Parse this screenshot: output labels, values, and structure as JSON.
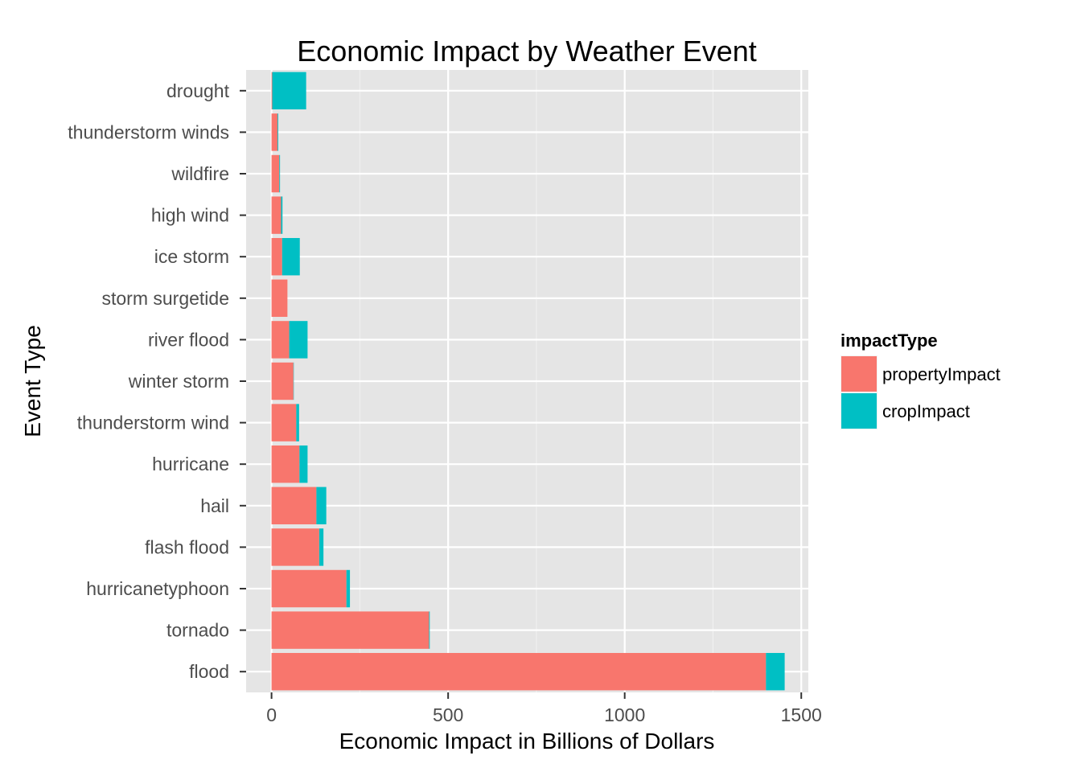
{
  "chart_data": {
    "type": "bar",
    "orientation": "horizontal",
    "stacked": true,
    "title": "Economic Impact by Weather Event",
    "xlabel": "Economic Impact in Billions of Dollars",
    "ylabel": "Event Type",
    "xlim": [
      -72,
      1520
    ],
    "xticks": [
      0,
      500,
      1000,
      1500
    ],
    "grid": true,
    "legend_position": "right",
    "legend_title": "impactType",
    "categories": [
      "flood",
      "tornado",
      "hurricanetyphoon",
      "flash flood",
      "hail",
      "hurricane",
      "thunderstorm wind",
      "winter storm",
      "river flood",
      "storm surgetide",
      "ice storm",
      "high wind",
      "wildfire",
      "thunderstorm winds",
      "drought"
    ],
    "series": [
      {
        "name": "propertyImpact",
        "color": "#F8766D",
        "values": [
          1400,
          446,
          212,
          135,
          127,
          79,
          70,
          62,
          50,
          45,
          30,
          27,
          22,
          17,
          2
        ]
      },
      {
        "name": "cropImpact",
        "color": "#00BFC4",
        "values": [
          53,
          2,
          10,
          12,
          28,
          23,
          8,
          1,
          52,
          0,
          50,
          4,
          2,
          2,
          96
        ]
      }
    ]
  }
}
